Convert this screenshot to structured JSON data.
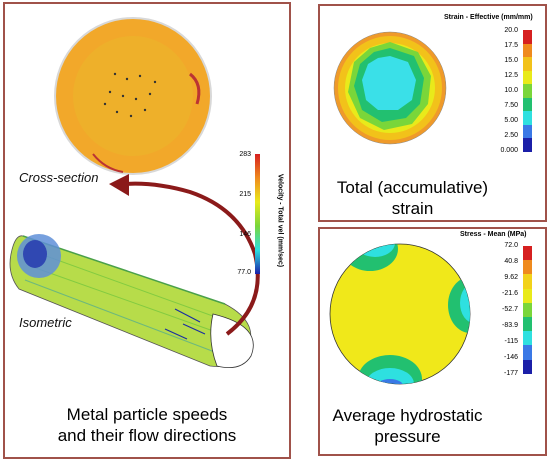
{
  "left_panel": {
    "label_cross_section": "Cross-section",
    "label_isometric": "Isometric",
    "caption_line1": "Metal particle speeds",
    "caption_line2": "and their flow directions",
    "scale": {
      "title": "Velocity - Total vel (mm/sec)",
      "ticks": [
        "283",
        "215",
        "146",
        "77.0"
      ]
    }
  },
  "top_right_panel": {
    "caption_line1": "Total (accumulative)",
    "caption_line2": "strain",
    "scale": {
      "title": "Strain - Effective (mm/mm)",
      "ticks": [
        "20.0",
        "17.5",
        "15.0",
        "12.5",
        "10.0",
        "7.50",
        "5.00",
        "2.50",
        "0.000"
      ],
      "colors": [
        "#d62020",
        "#ef8a1e",
        "#f2c21a",
        "#e9ea1a",
        "#7ad63a",
        "#22c070",
        "#2ee0e0",
        "#3a78e6",
        "#1b1fa8"
      ]
    }
  },
  "bottom_right_panel": {
    "caption_line1": "Average hydrostatic",
    "caption_line2": "pressure",
    "scale": {
      "title": "Stress - Mean (MPa)",
      "ticks": [
        "72.0",
        "40.8",
        "9.62",
        "-21.6",
        "-52.7",
        "-83.9",
        "-115",
        "-146",
        "-177"
      ],
      "colors": [
        "#d62020",
        "#ef8a1e",
        "#f2d21a",
        "#e9ea1a",
        "#7ad63a",
        "#22c070",
        "#2ee0e0",
        "#3a78e6",
        "#1b1fa8"
      ]
    }
  }
}
